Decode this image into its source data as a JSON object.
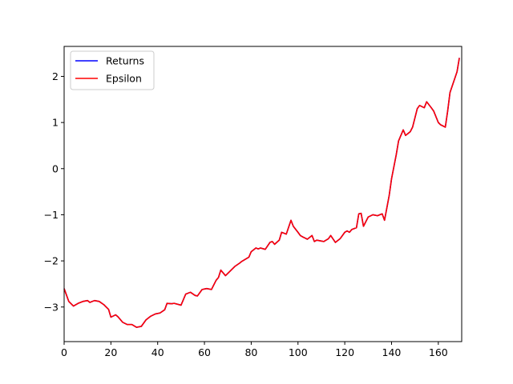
{
  "chart_data": {
    "type": "line",
    "title": "",
    "xlabel": "",
    "ylabel": "",
    "xlim": [
      0,
      170
    ],
    "ylim": [
      -3.75,
      2.65
    ],
    "xticks": [
      0,
      20,
      40,
      60,
      80,
      100,
      120,
      140,
      160
    ],
    "yticks": [
      -3,
      -2,
      -1,
      0,
      1,
      2
    ],
    "grid": false,
    "legend": "top-left",
    "x": [
      0,
      2,
      4,
      6,
      8,
      10,
      11,
      13,
      15,
      17,
      19,
      20,
      22,
      23,
      25,
      27,
      29,
      31,
      33,
      35,
      37,
      39,
      41,
      43,
      44,
      46,
      47,
      50,
      52,
      54,
      56,
      57,
      59,
      61,
      63,
      65,
      66,
      67,
      69,
      71,
      73,
      75,
      76,
      77,
      79,
      80,
      82,
      83,
      84,
      86,
      88,
      89,
      90,
      92,
      93,
      95,
      97,
      98,
      100,
      101,
      102,
      104,
      106,
      107,
      108,
      110,
      111,
      113,
      114,
      116,
      118,
      120,
      121,
      122,
      123,
      125,
      126,
      127,
      128,
      130,
      132,
      134,
      136,
      137,
      139,
      140,
      142,
      143,
      145,
      146,
      148,
      149,
      151,
      152,
      154,
      155,
      157,
      158,
      160,
      161,
      163,
      164,
      165,
      167,
      168,
      169
    ],
    "series": [
      {
        "name": "Returns",
        "color": "#0000ff",
        "values": [
          -2.6,
          -2.88,
          -2.98,
          -2.92,
          -2.88,
          -2.86,
          -2.9,
          -2.86,
          -2.88,
          -2.95,
          -3.05,
          -3.22,
          -3.17,
          -3.21,
          -3.33,
          -3.38,
          -3.38,
          -3.44,
          -3.42,
          -3.28,
          -3.2,
          -3.15,
          -3.13,
          -3.06,
          -2.92,
          -2.93,
          -2.92,
          -2.96,
          -2.72,
          -2.68,
          -2.75,
          -2.76,
          -2.62,
          -2.6,
          -2.62,
          -2.42,
          -2.36,
          -2.2,
          -2.32,
          -2.22,
          -2.12,
          -2.05,
          -2.01,
          -1.98,
          -1.92,
          -1.8,
          -1.72,
          -1.74,
          -1.72,
          -1.75,
          -1.6,
          -1.58,
          -1.64,
          -1.55,
          -1.38,
          -1.42,
          -1.12,
          -1.25,
          -1.38,
          -1.45,
          -1.48,
          -1.53,
          -1.45,
          -1.58,
          -1.55,
          -1.57,
          -1.58,
          -1.52,
          -1.45,
          -1.6,
          -1.52,
          -1.38,
          -1.35,
          -1.38,
          -1.32,
          -1.28,
          -0.98,
          -0.97,
          -1.25,
          -1.05,
          -1.0,
          -1.02,
          -0.98,
          -1.12,
          -0.58,
          -0.22,
          0.3,
          0.6,
          0.84,
          0.72,
          0.8,
          0.9,
          1.3,
          1.37,
          1.32,
          1.45,
          1.32,
          1.25,
          1.0,
          0.95,
          0.9,
          1.25,
          1.65,
          1.95,
          2.1,
          2.4
        ]
      },
      {
        "name": "Epsilon",
        "color": "#ff0000",
        "values": [
          -2.6,
          -2.88,
          -2.98,
          -2.92,
          -2.88,
          -2.86,
          -2.9,
          -2.86,
          -2.88,
          -2.95,
          -3.05,
          -3.22,
          -3.17,
          -3.21,
          -3.33,
          -3.38,
          -3.38,
          -3.44,
          -3.42,
          -3.28,
          -3.2,
          -3.15,
          -3.13,
          -3.06,
          -2.92,
          -2.93,
          -2.92,
          -2.96,
          -2.72,
          -2.68,
          -2.75,
          -2.76,
          -2.62,
          -2.6,
          -2.62,
          -2.42,
          -2.36,
          -2.2,
          -2.32,
          -2.22,
          -2.12,
          -2.05,
          -2.01,
          -1.98,
          -1.92,
          -1.8,
          -1.72,
          -1.74,
          -1.72,
          -1.75,
          -1.6,
          -1.58,
          -1.64,
          -1.55,
          -1.38,
          -1.42,
          -1.12,
          -1.25,
          -1.38,
          -1.45,
          -1.48,
          -1.53,
          -1.45,
          -1.58,
          -1.55,
          -1.57,
          -1.58,
          -1.52,
          -1.45,
          -1.6,
          -1.52,
          -1.38,
          -1.35,
          -1.38,
          -1.32,
          -1.28,
          -0.98,
          -0.97,
          -1.25,
          -1.05,
          -1.0,
          -1.02,
          -0.98,
          -1.12,
          -0.58,
          -0.22,
          0.3,
          0.6,
          0.84,
          0.72,
          0.8,
          0.9,
          1.3,
          1.37,
          1.32,
          1.45,
          1.32,
          1.25,
          1.0,
          0.95,
          0.9,
          1.25,
          1.65,
          1.95,
          2.1,
          2.4
        ]
      }
    ]
  }
}
